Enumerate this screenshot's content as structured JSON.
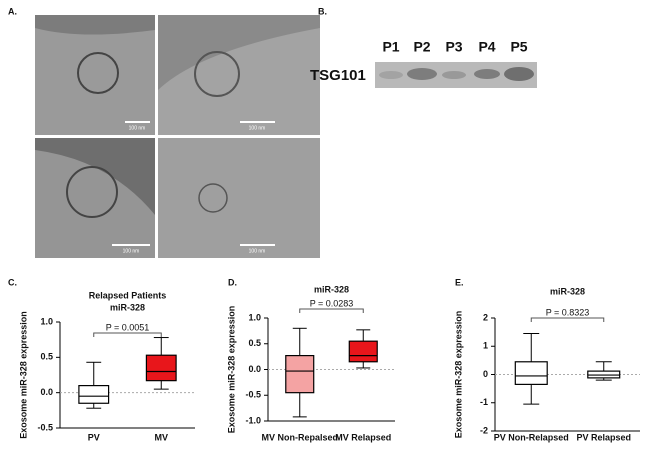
{
  "panel_a": {
    "label": "A.",
    "scale_labels": [
      "100 nm",
      "100 nm",
      "100 nm",
      "100 nm"
    ]
  },
  "panel_b": {
    "label": "B.",
    "lanes": [
      "P1",
      "P2",
      "P3",
      "P4",
      "P5"
    ],
    "protein": "TSG101"
  },
  "chart_data": [
    {
      "type": "box",
      "panel": "C.",
      "title": [
        "Relapsed Patients",
        "miR-328"
      ],
      "y_label": "Exosome miR-328 expression",
      "categories": [
        "PV",
        "MV"
      ],
      "colors": [
        "#ffffff",
        "#e8161b"
      ],
      "boxes": [
        {
          "min": -0.22,
          "q1": -0.15,
          "median": -0.05,
          "q3": 0.1,
          "max": 0.43
        },
        {
          "min": 0.05,
          "q1": 0.17,
          "median": 0.3,
          "q3": 0.53,
          "max": 0.78
        }
      ],
      "annotation": "P = 0.0051",
      "reference_line": 0,
      "ylim": [
        -0.5,
        1.0
      ],
      "yticks": [
        -0.5,
        {
          "value": 0,
          "label": "0.0"
        },
        0.5,
        {
          "value": 1,
          "label": "1.0"
        }
      ]
    },
    {
      "type": "box",
      "panel": "D.",
      "title": [
        "miR-328"
      ],
      "y_label": "Exosome miR-328 expression",
      "categories": [
        "MV Non-Repalsed",
        "MV Relapsed"
      ],
      "colors": [
        "#f4a3a3",
        "#e8161b"
      ],
      "boxes": [
        {
          "min": -0.92,
          "q1": -0.45,
          "median": -0.03,
          "q3": 0.27,
          "max": 0.8
        },
        {
          "min": 0.03,
          "q1": 0.15,
          "median": 0.27,
          "q3": 0.55,
          "max": 0.77
        }
      ],
      "annotation": "P = 0.0283",
      "reference_line": 0,
      "ylim": [
        -1.0,
        1.0
      ],
      "yticks": [
        {
          "value": -1,
          "label": "-1.0"
        },
        -0.5,
        {
          "value": 0,
          "label": "0.0"
        },
        0.5,
        {
          "value": 1,
          "label": "1.0"
        }
      ]
    },
    {
      "type": "box",
      "panel": "E.",
      "title": [
        "miR-328"
      ],
      "y_label": "Exosome miR-328 expression",
      "categories": [
        "PV Non-Relapsed",
        "PV Relapsed"
      ],
      "colors": [
        "#ffffff",
        "#ffffff"
      ],
      "boxes": [
        {
          "min": -1.05,
          "q1": -0.35,
          "median": -0.05,
          "q3": 0.45,
          "max": 1.45
        },
        {
          "min": -0.2,
          "q1": -0.12,
          "median": -0.02,
          "q3": 0.12,
          "max": 0.45
        }
      ],
      "annotation": "P = 0.8323",
      "reference_line": 0,
      "ylim": [
        -2,
        2
      ],
      "yticks": [
        -2,
        -1,
        0,
        1,
        2
      ]
    }
  ]
}
